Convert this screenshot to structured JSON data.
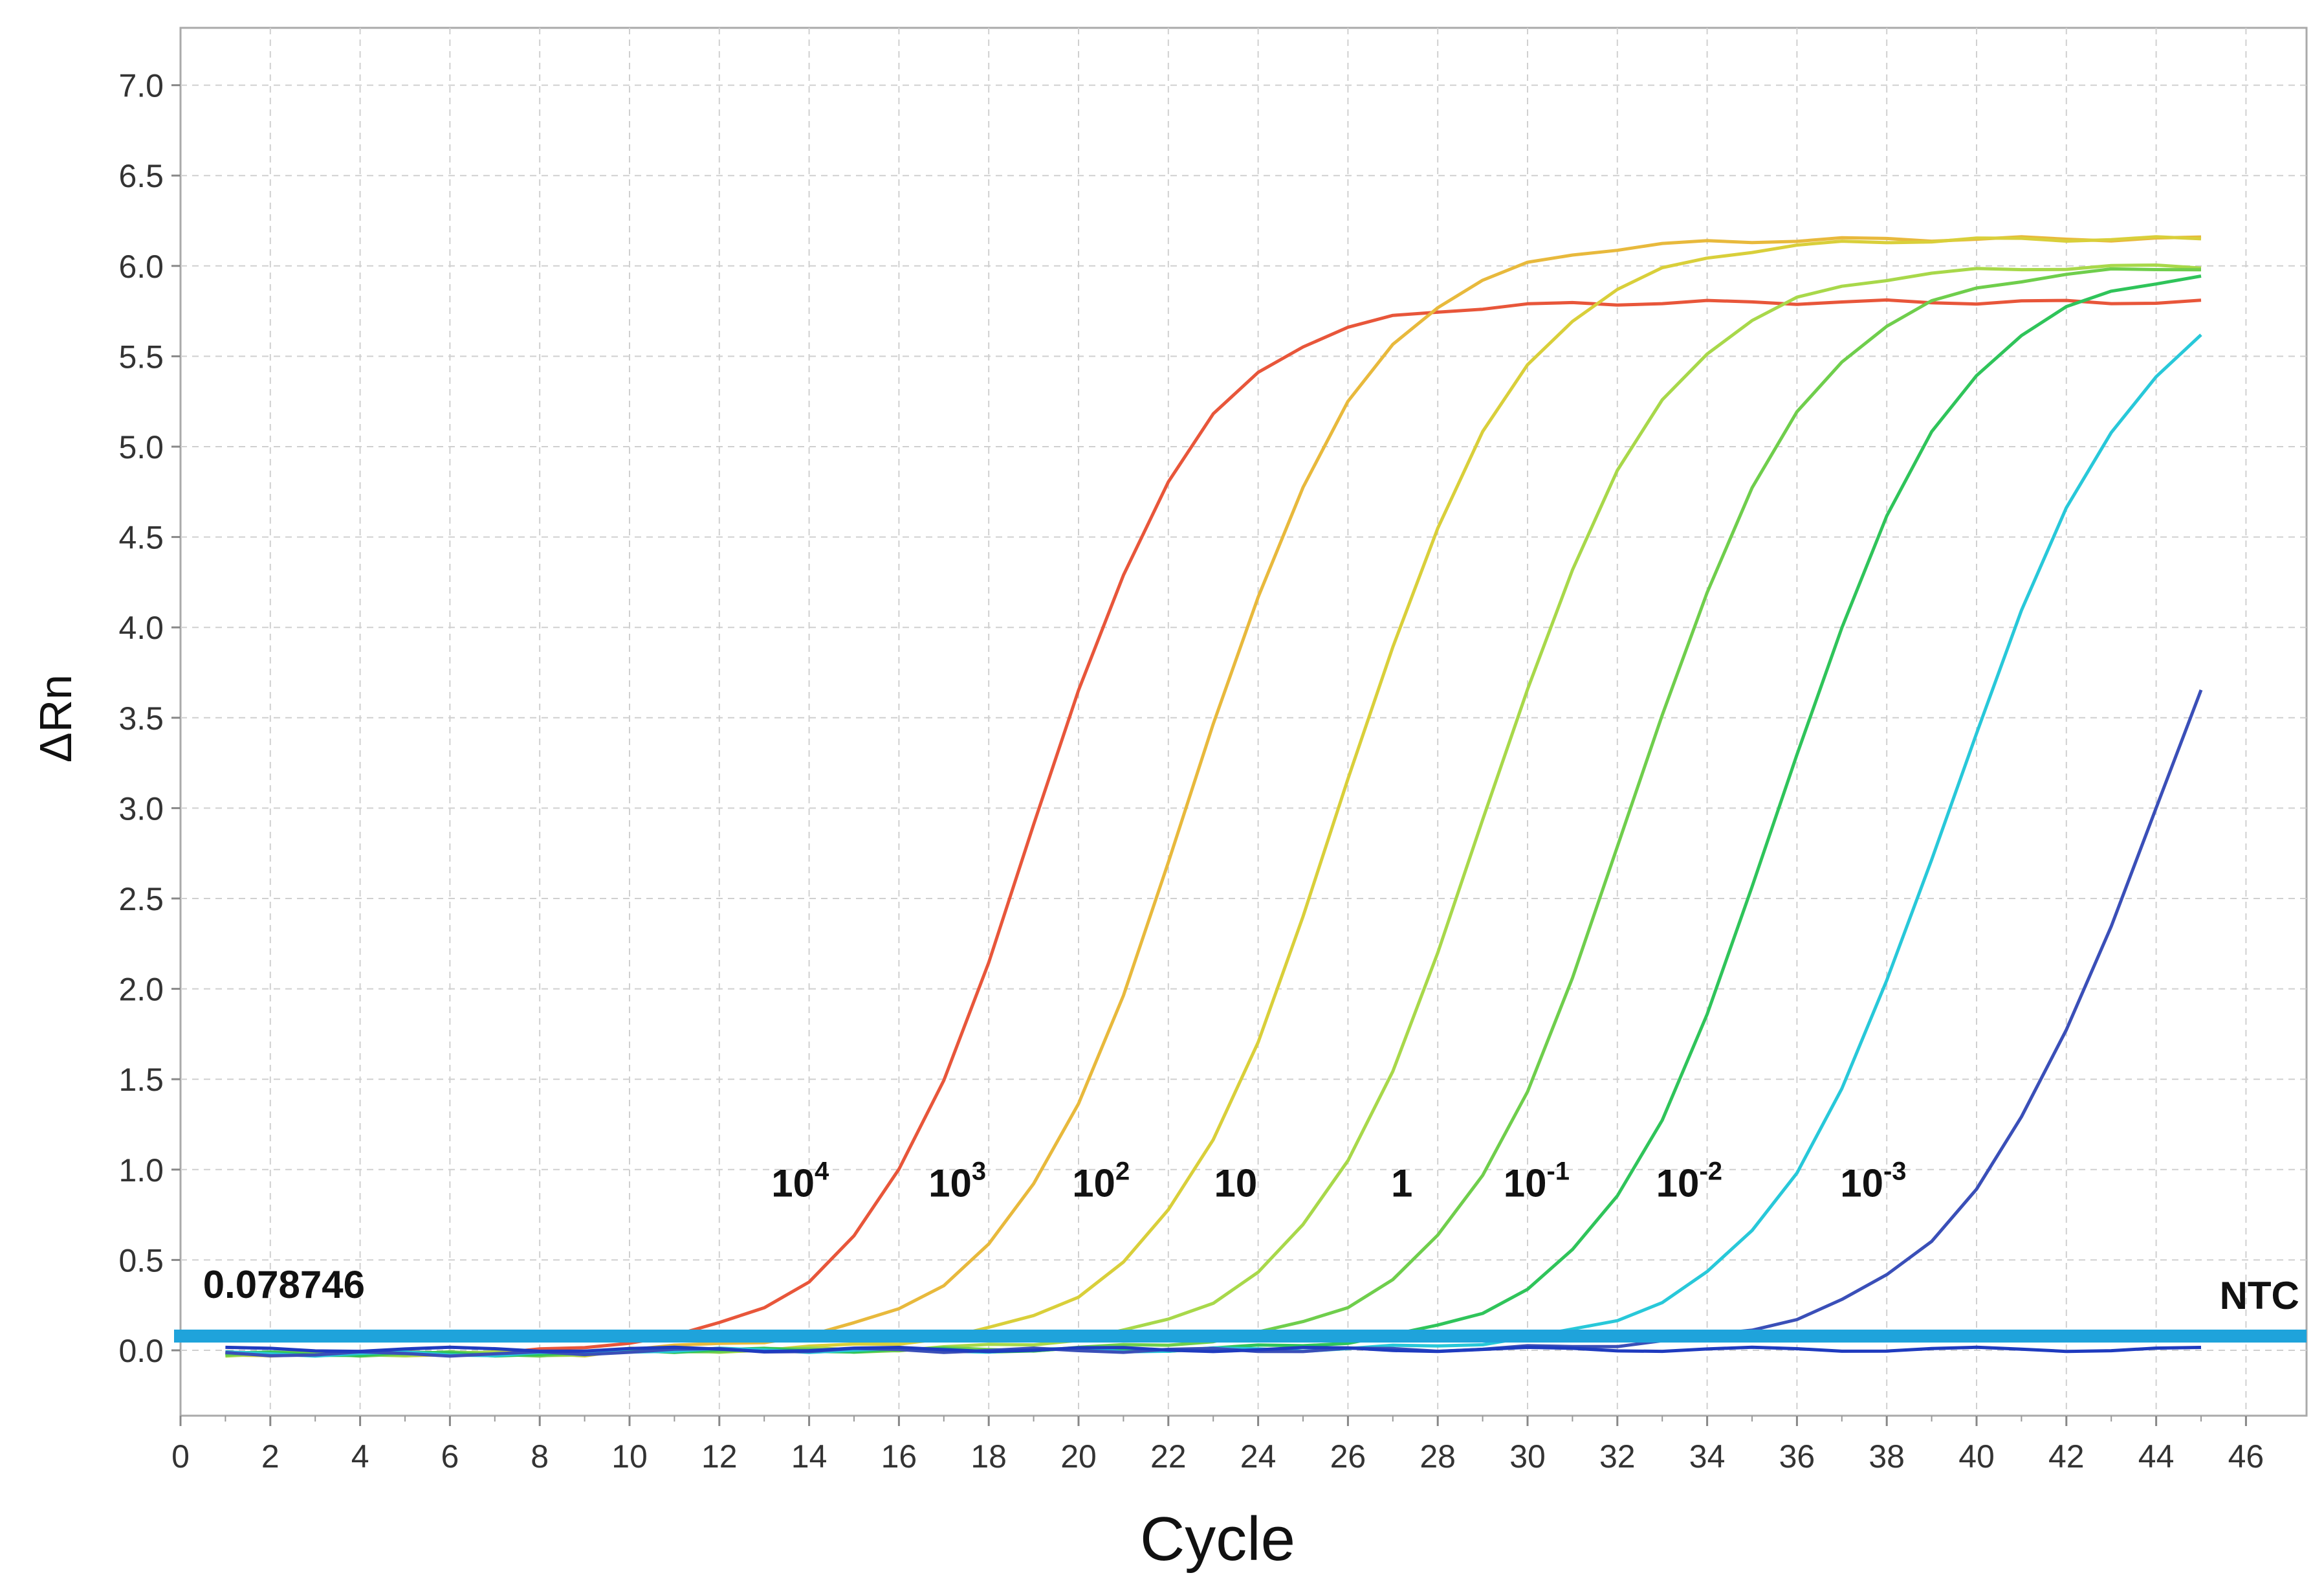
{
  "chart_data": {
    "type": "line",
    "title": "",
    "xlabel": "Cycle",
    "ylabel": "ΔRn",
    "xlim": [
      0,
      47
    ],
    "ylim": [
      -0.4,
      7.3
    ],
    "grid": true,
    "x_ticks": [
      0,
      2,
      4,
      6,
      8,
      10,
      12,
      14,
      16,
      18,
      20,
      22,
      24,
      26,
      28,
      30,
      32,
      34,
      36,
      38,
      40,
      42,
      44,
      46
    ],
    "y_ticks": [
      0.0,
      0.5,
      1.0,
      1.5,
      2.0,
      2.5,
      3.0,
      3.5,
      4.0,
      4.5,
      5.0,
      5.5,
      6.0,
      6.5,
      7.0
    ],
    "y_tick_labels": [
      "0.0",
      "0.5",
      "1.0",
      "1.5",
      "2.0",
      "2.5",
      "3.0",
      "3.5",
      "4.0",
      "4.5",
      "5.0",
      "5.5",
      "6.0",
      "6.5",
      "7.0"
    ],
    "threshold": {
      "value": 0.078746,
      "label": "0.078746",
      "color": "#1fa3db"
    },
    "series": [
      {
        "name": "10^4",
        "color": "#e8563a",
        "plateau": 5.8,
        "midpoint": 19.0,
        "slope": 1.9
      },
      {
        "name": "10^3",
        "color": "#e8b93c",
        "plateau": 6.15,
        "midpoint": 22.5,
        "slope": 2.0
      },
      {
        "name": "10^2",
        "color": "#d9cf3a",
        "plateau": 6.15,
        "midpoint": 25.9,
        "slope": 2.0
      },
      {
        "name": "10",
        "color": "#a8d84a",
        "plateau": 6.0,
        "midpoint": 29.1,
        "slope": 2.0
      },
      {
        "name": "1",
        "color": "#6fce4c",
        "plateau": 6.0,
        "midpoint": 32.3,
        "slope": 2.0
      },
      {
        "name": "10^-1",
        "color": "#2fc45a",
        "plateau": 6.0,
        "midpoint": 35.6,
        "slope": 2.0
      },
      {
        "name": "10^-2",
        "color": "#28c8d9",
        "plateau": 6.0,
        "midpoint": 39.4,
        "slope": 2.1
      },
      {
        "name": "10^-3",
        "color": "#3a4fb8",
        "plateau": 6.0,
        "midpoint": 44.0,
        "slope": 2.3
      },
      {
        "name": "NTC",
        "color": "#1f3bbf",
        "plateau": 0.0,
        "midpoint": 0,
        "slope": 1
      }
    ],
    "annotations": [
      {
        "base": "10",
        "exp": "4",
        "x": 13.8,
        "y": 0.85
      },
      {
        "base": "10",
        "exp": "3",
        "x": 17.3,
        "y": 0.85
      },
      {
        "base": "10",
        "exp": "2",
        "x": 20.5,
        "y": 0.85
      },
      {
        "base": "10",
        "exp": "",
        "x": 23.5,
        "y": 0.85
      },
      {
        "base": "1",
        "exp": "",
        "x": 27.2,
        "y": 0.85
      },
      {
        "base": "10",
        "exp": "-1",
        "x": 30.2,
        "y": 0.85
      },
      {
        "base": "10",
        "exp": "-2",
        "x": 33.6,
        "y": 0.85
      },
      {
        "base": "10",
        "exp": "-3",
        "x": 37.7,
        "y": 0.85
      },
      {
        "base": "NTC",
        "exp": "",
        "x": 46.3,
        "y": 0.23
      }
    ]
  }
}
